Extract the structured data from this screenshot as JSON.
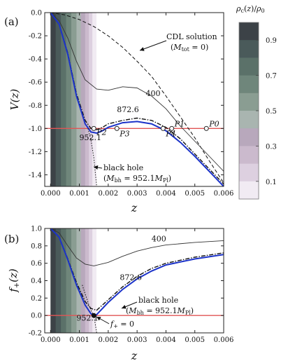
{
  "chart_data": [
    {
      "panel_label": "(a)",
      "type": "line",
      "xlabel": "z",
      "ylabel": "V(z)",
      "xlim": [
        -0.0002,
        0.006
      ],
      "ylim": [
        -1.5,
        0.0
      ],
      "xticks": [
        "0.000",
        "0.001",
        "0.002",
        "0.003",
        "0.004",
        "0.005",
        "0.006"
      ],
      "yticks": [
        "0.0",
        "-0.2",
        "-0.4",
        "-0.6",
        "-0.8",
        "-1.0",
        "-1.2",
        "-1.4"
      ],
      "reference_line": {
        "y": -1.0,
        "color": "#e05555"
      },
      "series": [
        {
          "label": "CDL solution",
          "sublabel": "(M_tot = 0)",
          "style": "dashed",
          "color": "#111111",
          "points": [
            [
              0,
              0
            ],
            [
              0.0005,
              -0.02
            ],
            [
              0.001,
              -0.06
            ],
            [
              0.0015,
              -0.12
            ],
            [
              0.002,
              -0.2
            ],
            [
              0.0025,
              -0.3
            ],
            [
              0.003,
              -0.42
            ],
            [
              0.0035,
              -0.55
            ],
            [
              0.004,
              -0.72
            ],
            [
              0.0045,
              -0.9
            ],
            [
              0.005,
              -1.08
            ],
            [
              0.0055,
              -1.28
            ],
            [
              0.006,
              -1.47
            ]
          ]
        },
        {
          "label": "400",
          "style": "solid-thin",
          "color": "#333333",
          "points": [
            [
              0,
              0
            ],
            [
              0.0003,
              -0.07
            ],
            [
              0.0006,
              -0.22
            ],
            [
              0.0009,
              -0.42
            ],
            [
              0.0012,
              -0.58
            ],
            [
              0.0016,
              -0.66
            ],
            [
              0.002,
              -0.67
            ],
            [
              0.0025,
              -0.64
            ],
            [
              0.003,
              -0.65
            ],
            [
              0.0035,
              -0.72
            ],
            [
              0.004,
              -0.83
            ],
            [
              0.0045,
              -0.98
            ],
            [
              0.005,
              -1.11
            ],
            [
              0.0055,
              -1.24
            ],
            [
              0.006,
              -1.37
            ]
          ]
        },
        {
          "label": "872.6",
          "style": "dashdot",
          "color": "#111111",
          "points": [
            [
              0,
              0
            ],
            [
              0.0003,
              -0.1
            ],
            [
              0.0006,
              -0.35
            ],
            [
              0.0009,
              -0.7
            ],
            [
              0.0012,
              -0.93
            ],
            [
              0.0014,
              -1.0
            ],
            [
              0.0016,
              -1.01
            ],
            [
              0.0018,
              -0.99
            ],
            [
              0.002,
              -0.96
            ],
            [
              0.0025,
              -0.93
            ],
            [
              0.003,
              -0.91
            ],
            [
              0.0035,
              -0.93
            ],
            [
              0.004,
              -0.99
            ],
            [
              0.0045,
              -1.09
            ],
            [
              0.005,
              -1.22
            ],
            [
              0.0055,
              -1.35
            ],
            [
              0.006,
              -1.48
            ]
          ]
        },
        {
          "label": "952.1",
          "style": "solid-thick",
          "color": "#1c33c9",
          "points": [
            [
              0,
              0
            ],
            [
              0.0003,
              -0.1
            ],
            [
              0.0006,
              -0.36
            ],
            [
              0.0009,
              -0.72
            ],
            [
              0.0012,
              -0.96
            ],
            [
              0.0014,
              -1.03
            ],
            [
              0.0016,
              -1.04
            ],
            [
              0.0018,
              -1.02
            ],
            [
              0.002,
              -0.99
            ],
            [
              0.0025,
              -0.95
            ],
            [
              0.003,
              -0.94
            ],
            [
              0.0035,
              -0.96
            ],
            [
              0.004,
              -1.02
            ],
            [
              0.0045,
              -1.12
            ],
            [
              0.005,
              -1.24
            ],
            [
              0.0055,
              -1.37
            ],
            [
              0.006,
              -1.5
            ]
          ]
        },
        {
          "label": "black hole",
          "sublabel": "(M_bh = 952.1 M_Pl)",
          "style": "dotted",
          "color": "#111111",
          "points": [
            [
              0.0013,
              -1.0
            ],
            [
              0.0014,
              -1.1
            ],
            [
              0.0015,
              -1.25
            ],
            [
              0.0016,
              -1.5
            ]
          ]
        }
      ],
      "markers": [
        {
          "label": "P2",
          "x": 0.0015,
          "y": -1.0,
          "filled": false
        },
        {
          "label": "P3",
          "x": 0.0023,
          "y": -1.0,
          "filled": false
        },
        {
          "label": "P4",
          "x": 0.0039,
          "y": -1.0,
          "filled": false
        },
        {
          "label": "P1",
          "x": 0.0042,
          "y": -1.0,
          "filled": false
        },
        {
          "label": "P0",
          "x": 0.0054,
          "y": -1.0,
          "filled": false
        }
      ],
      "curve_labels": [
        {
          "text": "400",
          "x": 0.0033,
          "y": -0.72
        },
        {
          "text": "872.6",
          "x": 0.0023,
          "y": -0.86
        },
        {
          "text": "952.1",
          "x": 0.001,
          "y": -1.1
        }
      ],
      "colorbar": {
        "title": "ρc(z)/ρ0",
        "ticks": [
          "0.9",
          "0.7",
          "0.5",
          "0.3",
          "0.1"
        ],
        "levels": 10
      }
    },
    {
      "panel_label": "(b)",
      "type": "line",
      "xlabel": "z",
      "ylabel": "f+(z)",
      "xlim": [
        -0.0002,
        0.006
      ],
      "ylim": [
        -0.2,
        1.0
      ],
      "xticks": [
        "0.000",
        "0.001",
        "0.002",
        "0.003",
        "0.004",
        "0.005",
        "0.006"
      ],
      "yticks": [
        "1.0",
        "0.8",
        "0.6",
        "0.4",
        "0.2",
        "0.0",
        "-0.2"
      ],
      "reference_line": {
        "y": 0.0,
        "color": "#e05555"
      },
      "series": [
        {
          "label": "400",
          "style": "solid-thin",
          "color": "#333333",
          "points": [
            [
              0,
              1.0
            ],
            [
              0.0003,
              0.95
            ],
            [
              0.0006,
              0.8
            ],
            [
              0.0009,
              0.66
            ],
            [
              0.0012,
              0.59
            ],
            [
              0.0015,
              0.57
            ],
            [
              0.002,
              0.61
            ],
            [
              0.0025,
              0.68
            ],
            [
              0.003,
              0.74
            ],
            [
              0.0035,
              0.78
            ],
            [
              0.004,
              0.81
            ],
            [
              0.005,
              0.84
            ],
            [
              0.006,
              0.86
            ]
          ]
        },
        {
          "label": "872.6",
          "style": "dashdot",
          "color": "#111111",
          "points": [
            [
              0,
              1.0
            ],
            [
              0.0003,
              0.9
            ],
            [
              0.0006,
              0.65
            ],
            [
              0.0009,
              0.38
            ],
            [
              0.0012,
              0.16
            ],
            [
              0.0014,
              0.08
            ],
            [
              0.0016,
              0.06
            ],
            [
              0.002,
              0.18
            ],
            [
              0.0025,
              0.33
            ],
            [
              0.003,
              0.45
            ],
            [
              0.0035,
              0.54
            ],
            [
              0.004,
              0.6
            ],
            [
              0.005,
              0.67
            ],
            [
              0.006,
              0.72
            ]
          ]
        },
        {
          "label": "952.1",
          "style": "solid-thick",
          "color": "#1c33c9",
          "points": [
            [
              0,
              1.0
            ],
            [
              0.0003,
              0.9
            ],
            [
              0.0006,
              0.64
            ],
            [
              0.0009,
              0.35
            ],
            [
              0.0012,
              0.12
            ],
            [
              0.0014,
              0.02
            ],
            [
              0.0015,
              0.0
            ],
            [
              0.0016,
              0.01
            ],
            [
              0.002,
              0.15
            ],
            [
              0.0025,
              0.3
            ],
            [
              0.003,
              0.42
            ],
            [
              0.0035,
              0.51
            ],
            [
              0.004,
              0.58
            ],
            [
              0.005,
              0.65
            ],
            [
              0.006,
              0.7
            ]
          ]
        },
        {
          "label": "black hole",
          "sublabel": "(M_bh = 952.1 M_Pl)",
          "style": "dotted",
          "color": "#111111",
          "points": [
            [
              0.0011,
              0.35
            ],
            [
              0.0012,
              0.25
            ],
            [
              0.0013,
              0.15
            ],
            [
              0.0014,
              0.06
            ],
            [
              0.0015,
              0.0
            ],
            [
              0.00155,
              -0.1
            ],
            [
              0.0016,
              -0.2
            ]
          ]
        }
      ],
      "markers": [
        {
          "label": "f+ = 0",
          "x": 0.0015,
          "y": 0.0,
          "filled": true
        }
      ],
      "curve_labels": [
        {
          "text": "400",
          "x": 0.0035,
          "y": 0.85
        },
        {
          "text": "872.6",
          "x": 0.0024,
          "y": 0.41
        },
        {
          "text": "952.1",
          "x": 0.0009,
          "y": -0.06
        }
      ]
    }
  ]
}
